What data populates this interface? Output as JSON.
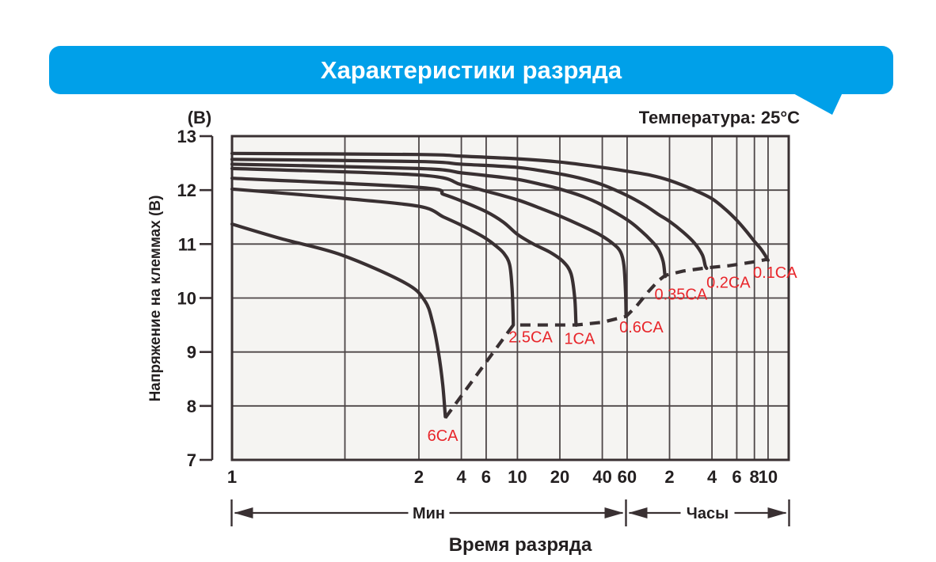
{
  "header": {
    "title": "Характеристики разряда",
    "temperature": "Температура: 25°C"
  },
  "colors": {
    "banner": "#00a0e9",
    "curve": "#393032",
    "grid": "#4d4647",
    "plot_bg": "#f5f4f2",
    "label_red": "#e8262b",
    "text": "#231f20"
  },
  "chart_data": {
    "type": "line",
    "title": "Характеристики разряда",
    "subtitle": "Температура: 25°C",
    "x_axis": {
      "label": "Время разряда",
      "scale": "log-time",
      "unit_ranges": [
        {
          "label": "Мин",
          "from_min": 1,
          "to_min": 60
        },
        {
          "label": "Часы",
          "from_min": 60,
          "to_min": 600
        }
      ],
      "ticks": [
        {
          "t": 1,
          "label": "1"
        },
        {
          "t": 2,
          "label": "2"
        },
        {
          "t": 4,
          "label": "4"
        },
        {
          "t": 6,
          "label": "6"
        },
        {
          "t": 10,
          "label": "10"
        },
        {
          "t": 20,
          "label": "20"
        },
        {
          "t": 40,
          "label": "40"
        },
        {
          "t": 60,
          "label": "60"
        },
        {
          "t": 120,
          "label": "2"
        },
        {
          "t": 240,
          "label": "4"
        },
        {
          "t": 360,
          "label": "6"
        },
        {
          "t": 480,
          "label": "8"
        },
        {
          "t": 600,
          "label": "10"
        }
      ]
    },
    "y_axis": {
      "label": "Напряжение на клеммах (В)",
      "unit": "(В)",
      "min": 7,
      "max": 13,
      "ticks": [
        {
          "v": 13,
          "label": "13"
        },
        {
          "v": 12,
          "label": "12"
        },
        {
          "v": 11,
          "label": "11"
        },
        {
          "v": 10,
          "label": "10"
        },
        {
          "v": 9,
          "label": "9"
        },
        {
          "v": 8,
          "label": "8"
        },
        {
          "v": 7,
          "label": "7"
        }
      ]
    },
    "grid": {
      "x_minutes": [
        1.52,
        2,
        4,
        6,
        10,
        20,
        40,
        60,
        120,
        240,
        360,
        480,
        600
      ],
      "y_volts": [
        8,
        9,
        10,
        11,
        12
      ]
    },
    "series": [
      {
        "name": "6CA",
        "label_at": [
          2.95,
          7.44
        ],
        "points": [
          [
            1,
            11.37
          ],
          [
            1.2,
            11.1
          ],
          [
            1.5,
            10.8
          ],
          [
            1.9,
            10.28
          ],
          [
            2.2,
            9.95
          ],
          [
            2.5,
            9.55
          ],
          [
            2.75,
            9.0
          ],
          [
            2.95,
            8.4
          ],
          [
            3.08,
            7.8
          ]
        ]
      },
      {
        "name": "2.5CA",
        "label_at": [
          12.4,
          9.27
        ],
        "points": [
          [
            1,
            12.02
          ],
          [
            1.5,
            11.85
          ],
          [
            2,
            11.7
          ],
          [
            3,
            11.5
          ],
          [
            4,
            11.35
          ],
          [
            5,
            11.22
          ],
          [
            6,
            11.1
          ],
          [
            7,
            10.97
          ],
          [
            8,
            10.83
          ],
          [
            8.8,
            10.62
          ],
          [
            9.15,
            10.2
          ],
          [
            9.3,
            9.75
          ],
          [
            9.35,
            9.5
          ]
        ]
      },
      {
        "name": "1CA",
        "label_at": [
          27.6,
          9.24
        ],
        "points": [
          [
            1,
            12.22
          ],
          [
            2,
            12.05
          ],
          [
            3,
            11.92
          ],
          [
            4,
            11.8
          ],
          [
            6,
            11.6
          ],
          [
            8,
            11.4
          ],
          [
            10,
            11.18
          ],
          [
            13,
            11.0
          ],
          [
            17,
            10.85
          ],
          [
            21,
            10.68
          ],
          [
            24,
            10.45
          ],
          [
            25.5,
            10.0
          ],
          [
            26,
            9.55
          ],
          [
            26.2,
            9.5
          ]
        ]
      },
      {
        "name": "0.6CA",
        "label_at": [
          75.7,
          9.45
        ],
        "points": [
          [
            1,
            12.4
          ],
          [
            2,
            12.28
          ],
          [
            4,
            12.1
          ],
          [
            6,
            11.98
          ],
          [
            10,
            11.82
          ],
          [
            15,
            11.65
          ],
          [
            20,
            11.52
          ],
          [
            28,
            11.35
          ],
          [
            38,
            11.18
          ],
          [
            48,
            11.0
          ],
          [
            54,
            10.85
          ],
          [
            57,
            10.6
          ],
          [
            58.5,
            10.1
          ],
          [
            59,
            9.68
          ]
        ]
      },
      {
        "name": "0.35CA",
        "label_at": [
          144.5,
          10.06
        ],
        "points": [
          [
            1,
            12.48
          ],
          [
            2,
            12.4
          ],
          [
            4,
            12.32
          ],
          [
            6,
            12.27
          ],
          [
            10,
            12.2
          ],
          [
            15,
            12.1
          ],
          [
            20,
            12.02
          ],
          [
            30,
            11.87
          ],
          [
            40,
            11.72
          ],
          [
            60,
            11.45
          ],
          [
            75,
            11.25
          ],
          [
            90,
            11.05
          ],
          [
            100,
            10.9
          ],
          [
            108,
            10.68
          ],
          [
            111,
            10.45
          ],
          [
            112,
            10.4
          ]
        ]
      },
      {
        "name": "0.2CA",
        "label_at": [
          314,
          10.28
        ],
        "points": [
          [
            1,
            12.57
          ],
          [
            2,
            12.53
          ],
          [
            4,
            12.48
          ],
          [
            10,
            12.42
          ],
          [
            20,
            12.3
          ],
          [
            30,
            12.2
          ],
          [
            40,
            12.1
          ],
          [
            60,
            11.9
          ],
          [
            80,
            11.72
          ],
          [
            100,
            11.55
          ],
          [
            120,
            11.42
          ],
          [
            150,
            11.22
          ],
          [
            180,
            11.02
          ],
          [
            205,
            10.8
          ],
          [
            215,
            10.6
          ],
          [
            220,
            10.55
          ]
        ]
      },
      {
        "name": "0.1CA",
        "label_at": [
          673,
          10.46
        ],
        "points": [
          [
            1,
            12.68
          ],
          [
            2,
            12.66
          ],
          [
            4,
            12.63
          ],
          [
            10,
            12.58
          ],
          [
            20,
            12.52
          ],
          [
            40,
            12.42
          ],
          [
            60,
            12.35
          ],
          [
            90,
            12.27
          ],
          [
            120,
            12.18
          ],
          [
            180,
            12.0
          ],
          [
            240,
            11.84
          ],
          [
            300,
            11.64
          ],
          [
            360,
            11.44
          ],
          [
            420,
            11.24
          ],
          [
            480,
            11.05
          ],
          [
            530,
            10.92
          ],
          [
            570,
            10.8
          ],
          [
            590,
            10.73
          ],
          [
            600,
            10.7
          ]
        ]
      }
    ],
    "cutoff_locus": {
      "style": "dashed",
      "points": [
        [
          3.08,
          7.78
        ],
        [
          9.35,
          9.5
        ],
        [
          15,
          9.5
        ],
        [
          26.2,
          9.5
        ],
        [
          40,
          9.55
        ],
        [
          59,
          9.66
        ],
        [
          70,
          9.85
        ],
        [
          85,
          10.12
        ],
        [
          100,
          10.32
        ],
        [
          112,
          10.42
        ],
        [
          150,
          10.5
        ],
        [
          220,
          10.56
        ],
        [
          320,
          10.6
        ],
        [
          450,
          10.66
        ],
        [
          600,
          10.72
        ]
      ]
    }
  }
}
